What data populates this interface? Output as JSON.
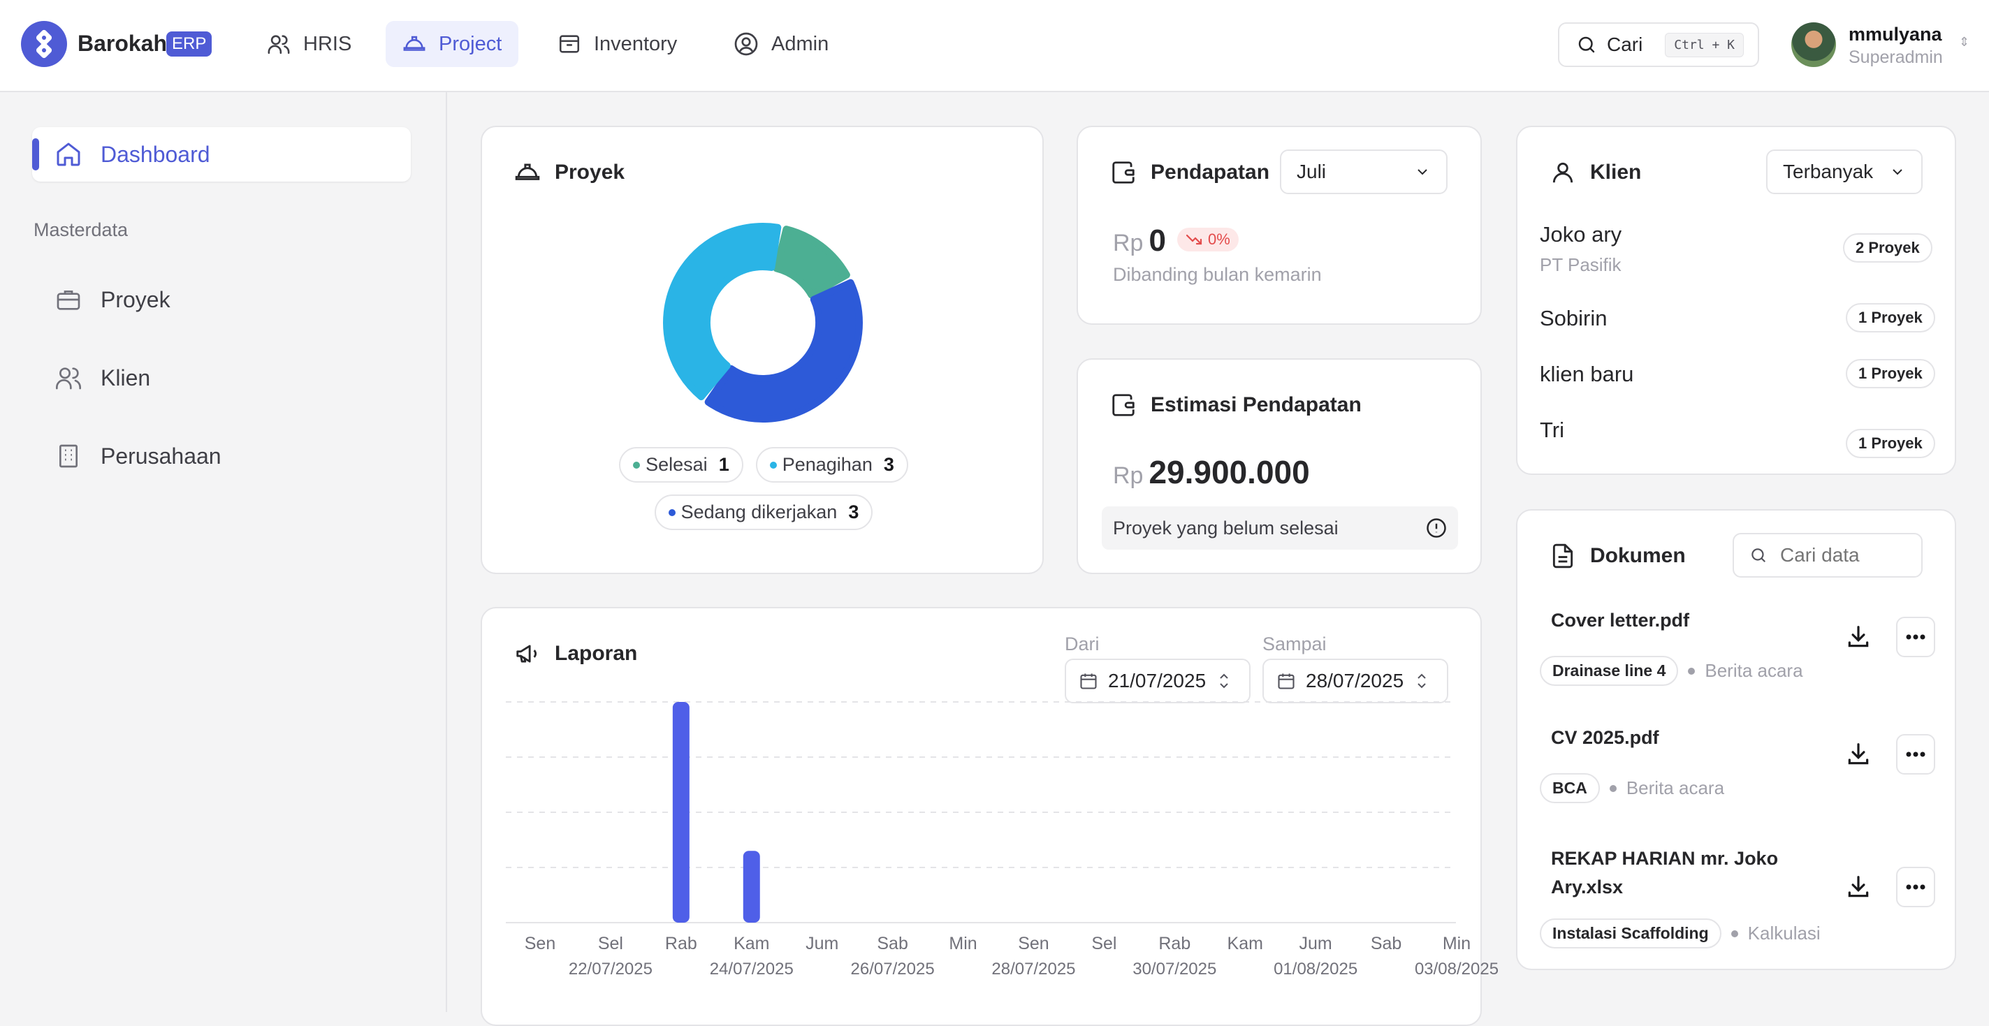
{
  "header": {
    "brand": "Barokah",
    "brand_badge": "ERP",
    "nav": [
      {
        "label": "HRIS",
        "icon": "users-icon"
      },
      {
        "label": "Project",
        "icon": "hardhat-icon",
        "active": true
      },
      {
        "label": "Inventory",
        "icon": "box-icon"
      },
      {
        "label": "Admin",
        "icon": "user-circle-icon"
      }
    ],
    "search_label": "Cari",
    "search_shortcut": "Ctrl + K",
    "user": {
      "name": "mmulyana",
      "role": "Superadmin"
    }
  },
  "sidebar": {
    "dashboard": "Dashboard",
    "section": "Masterdata",
    "items": [
      {
        "label": "Proyek",
        "icon": "briefcase-icon"
      },
      {
        "label": "Klien",
        "icon": "users-icon"
      },
      {
        "label": "Perusahaan",
        "icon": "building-icon"
      }
    ]
  },
  "proyek": {
    "title": "Proyek",
    "legend": [
      {
        "label": "Selesai",
        "count": "1",
        "color": "#4caf93"
      },
      {
        "label": "Penagihan",
        "count": "3",
        "color": "#2ab4e6"
      },
      {
        "label": "Sedang dikerjakan",
        "count": "3",
        "color": "#2d5ad8"
      }
    ]
  },
  "pendapatan": {
    "title": "Pendapatan",
    "month": "Juli",
    "currency": "Rp",
    "value": "0",
    "change": "0%",
    "note": "Dibanding bulan kemarin"
  },
  "estimasi": {
    "title": "Estimasi Pendapatan",
    "currency": "Rp",
    "value": "29.900.000",
    "note": "Proyek yang belum selesai"
  },
  "klien": {
    "title": "Klien",
    "sort": "Terbanyak",
    "items": [
      {
        "name": "Joko ary",
        "company": "PT Pasifik",
        "badge": "2 Proyek"
      },
      {
        "name": "Sobirin",
        "company": "",
        "badge": "1 Proyek"
      },
      {
        "name": "klien baru",
        "company": "",
        "badge": "1 Proyek"
      },
      {
        "name": "Tri",
        "company": "",
        "badge": "1 Proyek"
      }
    ]
  },
  "laporan": {
    "title": "Laporan",
    "from_label": "Dari",
    "from_value": "21/07/2025",
    "to_label": "Sampai",
    "to_value": "28/07/2025"
  },
  "dokumen": {
    "title": "Dokumen",
    "search_placeholder": "Cari data",
    "items": [
      {
        "name": "Cover letter.pdf",
        "project": "Drainase line 4",
        "category": "Berita acara"
      },
      {
        "name": "CV 2025.pdf",
        "project": "BCA",
        "category": "Berita acara"
      },
      {
        "name": "REKAP HARIAN mr. Joko Ary.xlsx",
        "project": "Instalasi Scaffolding",
        "category": "Kalkulasi"
      }
    ]
  },
  "chart_data": [
    {
      "type": "pie",
      "title": "",
      "categories": [
        "Selesai",
        "Penagihan",
        "Sedang dikerjakan"
      ],
      "values": [
        1,
        3,
        3
      ],
      "colors": [
        "#4caf93",
        "#2ab4e6",
        "#2d5ad8"
      ]
    },
    {
      "type": "bar",
      "title": "",
      "categories": [
        "Sen",
        "Sel",
        "Rab",
        "Kam",
        "Jum",
        "Sab",
        "Min",
        "Sen",
        "Sel",
        "Rab",
        "Kam",
        "Jum",
        "Sab",
        "Min"
      ],
      "date_labels": [
        "",
        "22/07/2025",
        "",
        "24/07/2025",
        "",
        "26/07/2025",
        "",
        "28/07/2025",
        "",
        "30/07/2025",
        "",
        "01/08/2025",
        "",
        "03/08/2025"
      ],
      "values": [
        0,
        0,
        4,
        1.3,
        0,
        0,
        0,
        0,
        0,
        0,
        0,
        0,
        0,
        0
      ],
      "ylim": [
        0,
        4
      ],
      "grid": true,
      "color": "#4f5fe8"
    }
  ]
}
